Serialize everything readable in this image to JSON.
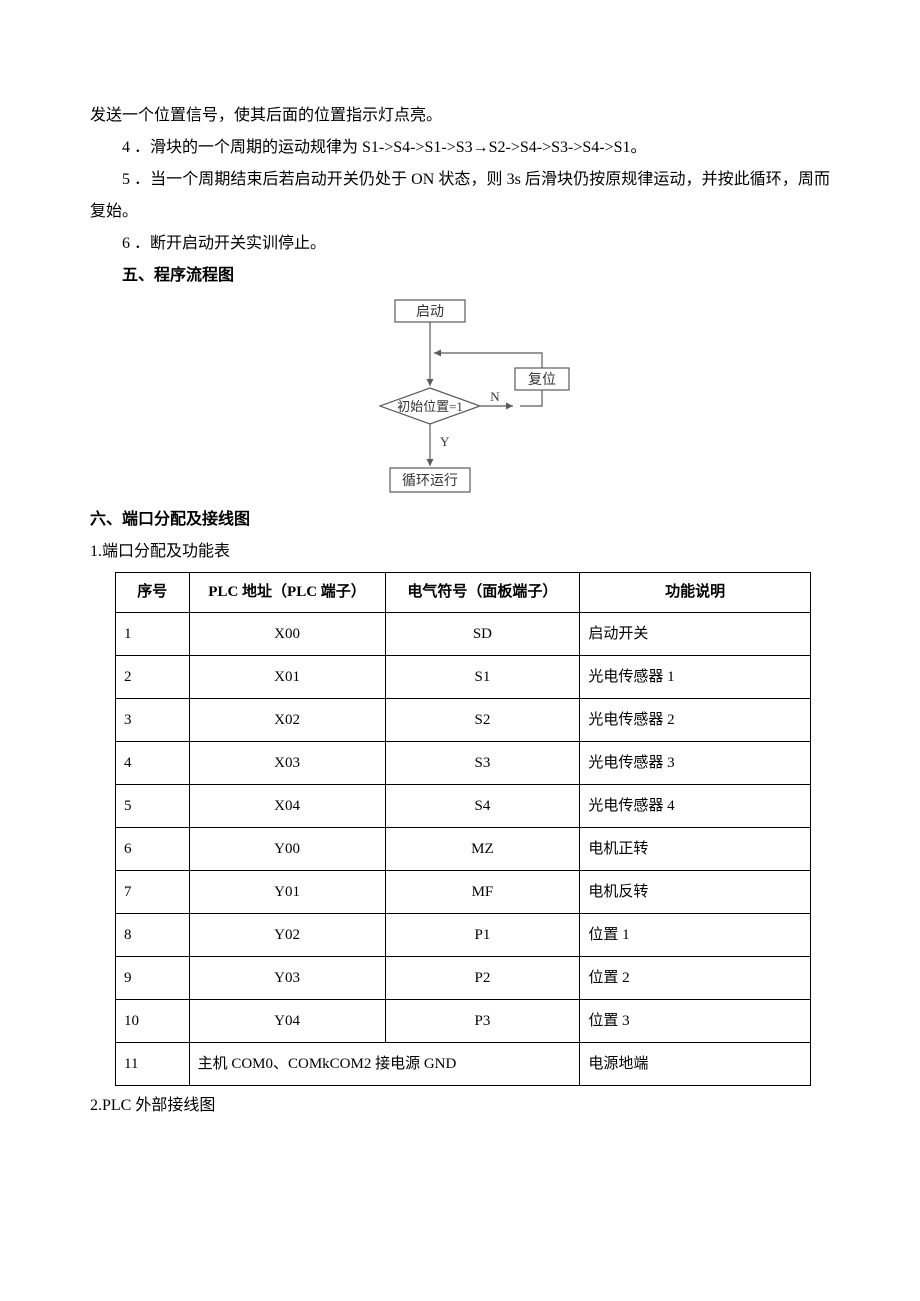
{
  "paragraphs": {
    "p0": "发送一个位置信号，使其后面的位置指示灯点亮。",
    "p4": "4 ．滑块的一个周期的运动规律为 S1->S4->S1->S3→S2->S4->S3->S4->S1。",
    "p5": "5 ．当一个周期结束后若启动开关仍处于 ON 状态，则 3s 后滑块仍按原规律运动，并按此循环，周而复始。",
    "p6": "6 ．断开启动开关实训停止。",
    "h5": "五、程序流程图",
    "h6": "六、端口分配及接线图",
    "sub1": "1.端口分配及功能表",
    "sub2": "2.PLC 外部接线图"
  },
  "flowchart": {
    "start": "启动",
    "decision": "初始位置=1",
    "reset": "复位",
    "loop": "循环运行",
    "yes": "Y",
    "no": "N",
    "colors": {
      "stroke": "#5a5a5a",
      "text": "#333333",
      "bg": "#ffffff"
    }
  },
  "table": {
    "headers": {
      "seq": "序号",
      "plc": "PLC 地址（PLC 端子）",
      "sym": "电气符号（面板端子）",
      "func": "功能说明"
    },
    "rows": [
      {
        "seq": "1",
        "plc": "X00",
        "sym": "SD",
        "func": "启动开关"
      },
      {
        "seq": "2",
        "plc": "X01",
        "sym": "S1",
        "func": "光电传感器 1"
      },
      {
        "seq": "3",
        "plc": "X02",
        "sym": "S2",
        "func": "光电传感器 2"
      },
      {
        "seq": "4",
        "plc": "X03",
        "sym": "S3",
        "func": "光电传感器 3"
      },
      {
        "seq": "5",
        "plc": "X04",
        "sym": "S4",
        "func": "光电传感器 4"
      },
      {
        "seq": "6",
        "plc": "Y00",
        "sym": "MZ",
        "func": "电机正转"
      },
      {
        "seq": "7",
        "plc": "Y01",
        "sym": "MF",
        "func": "电机反转"
      },
      {
        "seq": "8",
        "plc": "Y02",
        "sym": "P1",
        "func": "位置 1"
      },
      {
        "seq": "9",
        "plc": "Y03",
        "sym": "P2",
        "func": "位置 2"
      },
      {
        "seq": "10",
        "plc": "Y04",
        "sym": "P3",
        "func": "位置 3"
      }
    ],
    "last_row": {
      "seq": "11",
      "merged": "主机 COM0、COMkCOM2 接电源 GND",
      "func": "电源地端"
    }
  }
}
